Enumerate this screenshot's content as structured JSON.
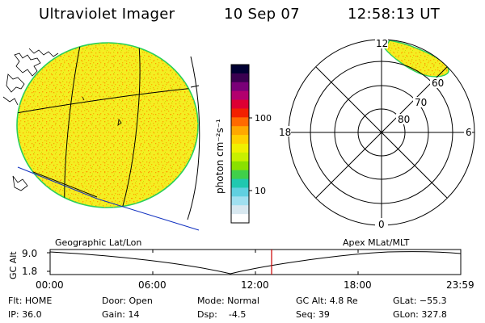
{
  "header": {
    "title": "Ultraviolet Imager",
    "date": "10 Sep 07",
    "time": "12:58:13 UT"
  },
  "colorbar": {
    "label": "photon cm⁻²s⁻¹",
    "ticks": [
      "100",
      "10"
    ],
    "colors": [
      "#000033",
      "#3a0050",
      "#7a0078",
      "#b2006e",
      "#dd0033",
      "#f22000",
      "#ff6a00",
      "#ffa800",
      "#ffd000",
      "#f0f000",
      "#c8f000",
      "#8ae000",
      "#40d04a",
      "#20c8b0",
      "#60d0e0",
      "#a0e0f0",
      "#d8e8f0",
      "#ffffff"
    ]
  },
  "globe": {
    "caption": "Geographic Lat/Lon",
    "fill_color": "#f4ee22",
    "limb_color": "#2ad05a"
  },
  "polar": {
    "caption": "Apex MLat/MLT",
    "mlt_labels": {
      "top": "12",
      "left": "18",
      "right": "6",
      "bottom": "0"
    },
    "lat_labels": [
      "60",
      "70",
      "80"
    ]
  },
  "altitude_plot": {
    "ylabel": "GC Alt",
    "yticks": [
      "9.0",
      "1.8"
    ],
    "xticks": [
      "00:00",
      "06:00",
      "12:00",
      "18:00",
      "23:59"
    ],
    "current_marker_color": "#cc0000"
  },
  "info": {
    "flt": "Flt: HOME",
    "ip": "IP: 36.0",
    "door": "Door: Open",
    "gain": "Gain: 14",
    "mode": "Mode: Normal",
    "dsp": "Dsp:    -4.5",
    "gcalt": "GC Alt: 4.8 Re",
    "seq": "Seq: 39",
    "glat": "GLat: −55.3",
    "glon": "GLon: 327.8"
  }
}
